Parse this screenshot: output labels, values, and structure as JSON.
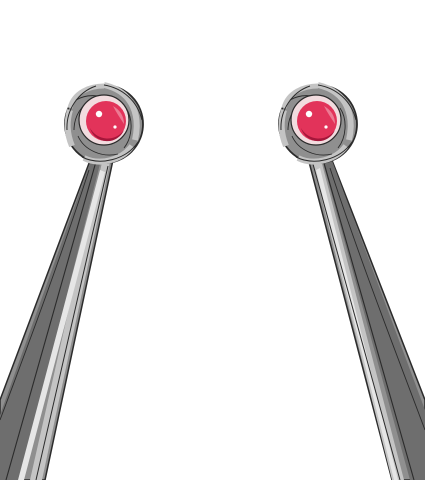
{
  "scene": {
    "subject": "twisted-antenna-stalks",
    "background": "#ffffff",
    "antennae": [
      {
        "side": "left",
        "eye_color": "#e2335a"
      },
      {
        "side": "right",
        "eye_color": "#e2335a"
      }
    ],
    "colors": {
      "outline": "#2b2b2b",
      "metal_dark": "#6e6e6e",
      "metal_mid": "#8f8f8f",
      "metal_light": "#c4c4c4",
      "metal_highlight": "#e6e6e6",
      "eye_rim": "#f2dcdf",
      "eye_dark": "#a5163a",
      "eye_glint": "#ffffff"
    }
  }
}
